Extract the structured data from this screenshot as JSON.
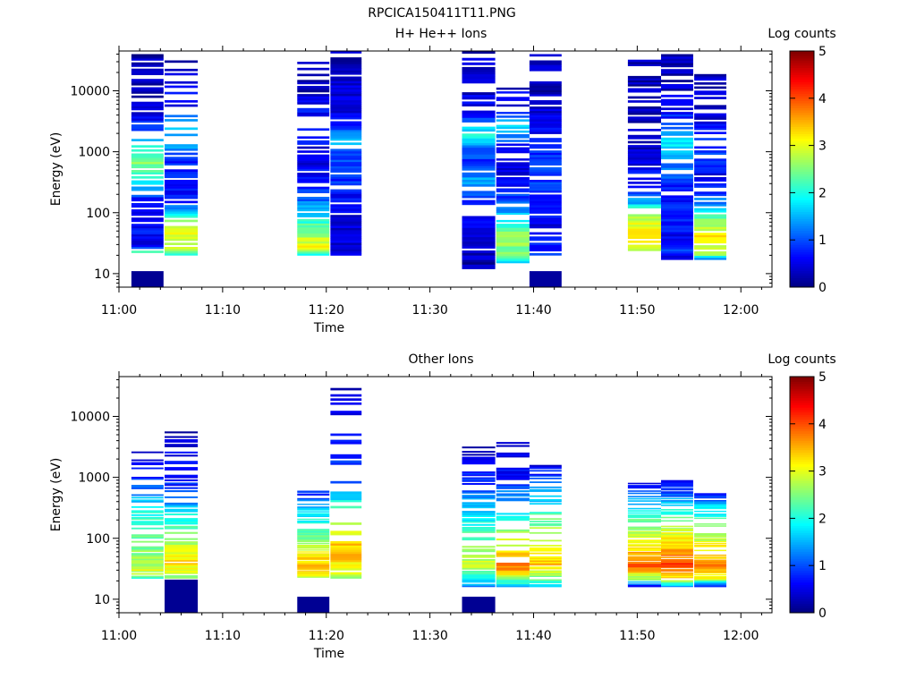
{
  "figure": {
    "title": "RPCICA150411T11.PNG"
  },
  "colormap": [
    "#00007f",
    "#0000ff",
    "#007fff",
    "#00ffff",
    "#7fff7f",
    "#ffff00",
    "#ff7f00",
    "#ff0000",
    "#7f0000"
  ],
  "chart_data": [
    {
      "type": "heatmap",
      "title": "H+ He++ Ions",
      "xlabel": "Time",
      "ylabel": "Energy (eV)",
      "yscale": "log",
      "ylim": [
        6,
        45000
      ],
      "xlim": [
        "11:00",
        "12:03"
      ],
      "xtick_labels": [
        "11:00",
        "11:10",
        "11:20",
        "11:30",
        "11:40",
        "11:50",
        "12:00"
      ],
      "ytick_labels": [
        "10",
        "100",
        "1000",
        "10000"
      ],
      "colorbar": {
        "label": "Log counts",
        "range": [
          0,
          5
        ],
        "tick_labels": [
          "0",
          "1",
          "2",
          "3",
          "4",
          "5"
        ]
      },
      "columns": [
        {
          "t0": "11:01.2",
          "t1": "11:04.3",
          "emin": 22,
          "emax": 40000,
          "profile": [
            [
              22,
              2.3
            ],
            [
              30,
              0.6
            ],
            [
              60,
              0.7
            ],
            [
              150,
              0.6
            ],
            [
              300,
              1.6
            ],
            [
              700,
              2.6
            ],
            [
              1200,
              2.1
            ],
            [
              2000,
              1.1
            ],
            [
              5000,
              0.4
            ],
            [
              12000,
              0.3
            ],
            [
              40000,
              0.25
            ]
          ],
          "gaps": [
            0.45,
            0.25,
            0.15
          ],
          "low": {
            "e0": 6,
            "e1": 11,
            "v": 0.1
          }
        },
        {
          "t0": "11:04.4",
          "t1": "11:07.6",
          "emin": 20,
          "emax": 40000,
          "profile": [
            [
              20,
              1.6
            ],
            [
              25,
              2.8
            ],
            [
              40,
              3.0
            ],
            [
              80,
              2.6
            ],
            [
              150,
              0.7
            ],
            [
              400,
              0.7
            ],
            [
              800,
              0.8
            ],
            [
              1500,
              1.6
            ],
            [
              3000,
              1.5
            ],
            [
              5000,
              0.6
            ],
            [
              40000,
              0.3
            ]
          ],
          "gaps": [
            0.6,
            0.25,
            0.15
          ],
          "low": null
        },
        {
          "t0": "11:17.2",
          "t1": "11:20.3",
          "emin": 20,
          "emax": 30000,
          "profile": [
            [
              20,
              1.6
            ],
            [
              25,
              3.1
            ],
            [
              40,
              2.8
            ],
            [
              70,
              2.1
            ],
            [
              150,
              1.2
            ],
            [
              400,
              0.6
            ],
            [
              1000,
              0.5
            ],
            [
              3000,
              0.8
            ],
            [
              10000,
              0.3
            ],
            [
              30000,
              0.25
            ]
          ],
          "gaps": [
            0.5,
            0.25,
            0.15
          ],
          "low": null
        },
        {
          "t0": "11:20.4",
          "t1": "11:23.4",
          "emin": 20,
          "emax": 45000,
          "profile": [
            [
              20,
              0.4
            ],
            [
              100,
              0.5
            ],
            [
              300,
              0.8
            ],
            [
              1000,
              1.0
            ],
            [
              1800,
              1.7
            ],
            [
              3000,
              0.6
            ],
            [
              10000,
              0.4
            ],
            [
              45000,
              0.3
            ]
          ],
          "gaps": [
            0.2,
            0.15,
            0.1
          ],
          "low": null
        },
        {
          "t0": "11:33.1",
          "t1": "11:36.3",
          "emin": 11,
          "emax": 45000,
          "profile": [
            [
              11,
              0.2
            ],
            [
              40,
              0.4
            ],
            [
              200,
              0.9
            ],
            [
              350,
              1.4
            ],
            [
              600,
              0.8
            ],
            [
              1200,
              1.2
            ],
            [
              1800,
              2.2
            ],
            [
              2500,
              1.6
            ],
            [
              4000,
              0.5
            ],
            [
              45000,
              0.3
            ]
          ],
          "gaps": [
            0.35,
            0.25,
            0.1
          ],
          "low": null
        },
        {
          "t0": "11:36.4",
          "t1": "11:39.6",
          "emin": 15,
          "emax": 13000,
          "profile": [
            [
              15,
              1.4
            ],
            [
              20,
              2.4
            ],
            [
              40,
              2.7
            ],
            [
              80,
              1.8
            ],
            [
              130,
              1.2
            ],
            [
              300,
              0.5
            ],
            [
              1000,
              0.4
            ],
            [
              3000,
              1.8
            ],
            [
              5000,
              0.6
            ],
            [
              13000,
              0.4
            ]
          ],
          "gaps": [
            0.55,
            0.3,
            0.15
          ],
          "low": null
        },
        {
          "t0": "11:39.6",
          "t1": "11:42.7",
          "emin": 20,
          "emax": 40000,
          "profile": [
            [
              20,
              0.8
            ],
            [
              60,
              0.5
            ],
            [
              200,
              0.9
            ],
            [
              500,
              1.0
            ],
            [
              1000,
              0.8
            ],
            [
              2000,
              0.6
            ],
            [
              10000,
              0.3
            ],
            [
              40000,
              0.25
            ]
          ],
          "gaps": [
            0.25,
            0.2,
            0.1
          ],
          "low": {
            "e0": 6,
            "e1": 11,
            "v": 0.15
          }
        },
        {
          "t0": "11:49.1",
          "t1": "11:52.3",
          "emin": 22,
          "emax": 35000,
          "profile": [
            [
              22,
              2.4
            ],
            [
              30,
              3.3
            ],
            [
              60,
              3.1
            ],
            [
              100,
              2.5
            ],
            [
              150,
              1.4
            ],
            [
              300,
              0.7
            ],
            [
              1000,
              0.4
            ],
            [
              3000,
              0.3
            ],
            [
              35000,
              0.25
            ]
          ],
          "gaps": [
            0.5,
            0.25,
            0.15
          ],
          "low": null
        },
        {
          "t0": "11:52.3",
          "t1": "11:55.4",
          "emin": 17,
          "emax": 40000,
          "profile": [
            [
              17,
              0.4
            ],
            [
              25,
              1.1
            ],
            [
              40,
              0.6
            ],
            [
              80,
              0.8
            ],
            [
              200,
              0.6
            ],
            [
              800,
              1.4
            ],
            [
              1500,
              1.9
            ],
            [
              3000,
              0.9
            ],
            [
              10000,
              0.3
            ],
            [
              40000,
              0.25
            ]
          ],
          "gaps": [
            0.3,
            0.2,
            0.1
          ],
          "low": null
        },
        {
          "t0": "11:55.5",
          "t1": "11:58.6",
          "emin": 17,
          "emax": 30000,
          "profile": [
            [
              17,
              1.0
            ],
            [
              22,
              2.9
            ],
            [
              40,
              3.2
            ],
            [
              80,
              2.5
            ],
            [
              150,
              1.2
            ],
            [
              400,
              0.5
            ],
            [
              1000,
              0.9
            ],
            [
              3000,
              0.5
            ],
            [
              30000,
              0.25
            ]
          ],
          "gaps": [
            0.5,
            0.25,
            0.15
          ],
          "low": null
        }
      ]
    },
    {
      "type": "heatmap",
      "title": "Other Ions",
      "xlabel": "Time",
      "ylabel": "Energy (eV)",
      "yscale": "log",
      "ylim": [
        6,
        45000
      ],
      "xlim": [
        "11:00",
        "12:03"
      ],
      "xtick_labels": [
        "11:00",
        "11:10",
        "11:20",
        "11:30",
        "11:40",
        "11:50",
        "12:00"
      ],
      "ytick_labels": [
        "10",
        "100",
        "1000",
        "10000"
      ],
      "colorbar": {
        "label": "Log counts",
        "range": [
          0,
          5
        ],
        "tick_labels": [
          "0",
          "1",
          "2",
          "3",
          "4",
          "5"
        ]
      },
      "columns": [
        {
          "t0": "11:01.2",
          "t1": "11:04.3",
          "emin": 22,
          "emax": 2800,
          "profile": [
            [
              22,
              2.1
            ],
            [
              30,
              3.0
            ],
            [
              45,
              2.6
            ],
            [
              100,
              2.4
            ],
            [
              300,
              1.9
            ],
            [
              600,
              1.2
            ],
            [
              900,
              0.8
            ],
            [
              2800,
              0.4
            ]
          ],
          "gaps": [
            0.6,
            0.5,
            0.2
          ],
          "low": null
        },
        {
          "t0": "11:04.4",
          "t1": "11:07.6",
          "emin": 22,
          "emax": 6000,
          "profile": [
            [
              22,
              2.5
            ],
            [
              40,
              3.4
            ],
            [
              80,
              2.8
            ],
            [
              150,
              2.2
            ],
            [
              300,
              1.7
            ],
            [
              700,
              0.8
            ],
            [
              6000,
              0.3
            ]
          ],
          "gaps": [
            0.6,
            0.5,
            0.2
          ],
          "low": {
            "e0": 6,
            "e1": 21,
            "v": 0.1
          }
        },
        {
          "t0": "11:17.2",
          "t1": "11:20.3",
          "emin": 22,
          "emax": 650,
          "profile": [
            [
              22,
              2.8
            ],
            [
              35,
              3.6
            ],
            [
              60,
              3.0
            ],
            [
              120,
              2.4
            ],
            [
              300,
              1.6
            ],
            [
              650,
              0.6
            ]
          ],
          "gaps": [
            0.55,
            0.15,
            0.1
          ],
          "low": {
            "e0": 6,
            "e1": 11,
            "v": 0.1
          }
        },
        {
          "t0": "11:20.4",
          "t1": "11:23.4",
          "emin": 22,
          "emax": 40000,
          "profile": [
            [
              22,
              2.6
            ],
            [
              50,
              3.5
            ],
            [
              100,
              3.3
            ],
            [
              250,
              2.5
            ],
            [
              500,
              1.6
            ],
            [
              900,
              1.0
            ],
            [
              40000,
              0.3
            ]
          ],
          "gaps": [
            0.7,
            0.6,
            0.2
          ],
          "low": null
        },
        {
          "t0": "11:33.1",
          "t1": "11:36.3",
          "emin": 16,
          "emax": 3200,
          "profile": [
            [
              16,
              1.3
            ],
            [
              22,
              2.0
            ],
            [
              35,
              2.9
            ],
            [
              60,
              2.6
            ],
            [
              150,
              2.1
            ],
            [
              400,
              1.4
            ],
            [
              900,
              0.8
            ],
            [
              3200,
              0.3
            ]
          ],
          "gaps": [
            0.5,
            0.5,
            0.15
          ],
          "low": {
            "e0": 6,
            "e1": 11,
            "v": 0.1
          }
        },
        {
          "t0": "11:36.4",
          "t1": "11:39.6",
          "emin": 16,
          "emax": 3800,
          "profile": [
            [
              16,
              1.5
            ],
            [
              22,
              2.6
            ],
            [
              32,
              3.8
            ],
            [
              60,
              3.2
            ],
            [
              150,
              2.4
            ],
            [
              400,
              1.5
            ],
            [
              900,
              0.8
            ],
            [
              3800,
              0.3
            ]
          ],
          "gaps": [
            0.5,
            0.45,
            0.15
          ],
          "low": null
        },
        {
          "t0": "11:39.6",
          "t1": "11:42.7",
          "emin": 16,
          "emax": 1600,
          "profile": [
            [
              16,
              1.5
            ],
            [
              22,
              2.4
            ],
            [
              35,
              3.4
            ],
            [
              80,
              3.1
            ],
            [
              200,
              2.4
            ],
            [
              500,
              1.5
            ],
            [
              1600,
              0.5
            ]
          ],
          "gaps": [
            0.6,
            0.55,
            0.15
          ],
          "low": null
        },
        {
          "t0": "11:49.1",
          "t1": "11:52.3",
          "emin": 16,
          "emax": 850,
          "profile": [
            [
              16,
              0.3
            ],
            [
              22,
              2.6
            ],
            [
              35,
              4.0
            ],
            [
              60,
              3.4
            ],
            [
              150,
              2.6
            ],
            [
              300,
              1.8
            ],
            [
              850,
              0.6
            ]
          ],
          "gaps": [
            0.5,
            0.2,
            0.1
          ],
          "low": null
        },
        {
          "t0": "11:52.3",
          "t1": "11:55.4",
          "emin": 16,
          "emax": 900,
          "profile": [
            [
              16,
              1.4
            ],
            [
              22,
              3.2
            ],
            [
              35,
              4.1
            ],
            [
              70,
              3.5
            ],
            [
              150,
              2.8
            ],
            [
              400,
              1.5
            ],
            [
              900,
              0.5
            ]
          ],
          "gaps": [
            0.4,
            0.2,
            0.1
          ],
          "low": null
        },
        {
          "t0": "11:55.5",
          "t1": "11:58.6",
          "emin": 16,
          "emax": 550,
          "profile": [
            [
              16,
              0.6
            ],
            [
              22,
              3.0
            ],
            [
              35,
              3.8
            ],
            [
              70,
              3.2
            ],
            [
              150,
              2.5
            ],
            [
              350,
              1.6
            ],
            [
              550,
              0.6
            ]
          ],
          "gaps": [
            0.45,
            0.2,
            0.1
          ],
          "low": null
        }
      ]
    }
  ]
}
